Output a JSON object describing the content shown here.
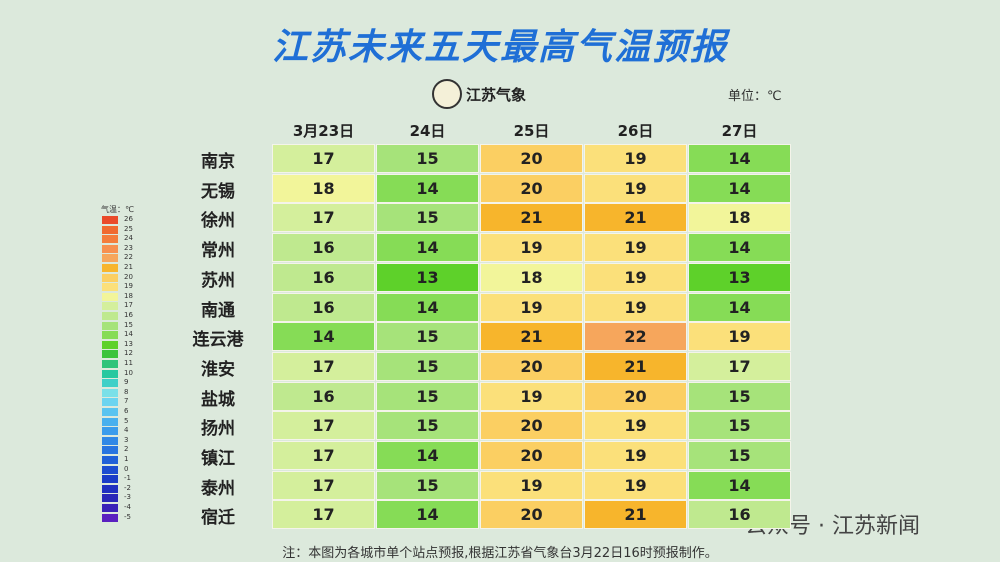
{
  "header": {
    "title": "江苏未来五天最高气温预报",
    "logo": "江苏气象",
    "unit": "单位：℃"
  },
  "table": {
    "columns": [
      "3月23日",
      "24日",
      "25日",
      "26日",
      "27日"
    ],
    "rows": [
      {
        "city": "南京",
        "values": [
          17,
          15,
          20,
          19,
          14
        ]
      },
      {
        "city": "无锡",
        "values": [
          18,
          14,
          20,
          19,
          14
        ]
      },
      {
        "city": "徐州",
        "values": [
          17,
          15,
          21,
          21,
          18
        ]
      },
      {
        "city": "常州",
        "values": [
          16,
          14,
          19,
          19,
          14
        ]
      },
      {
        "city": "苏州",
        "values": [
          16,
          13,
          18,
          19,
          13
        ]
      },
      {
        "city": "南通",
        "values": [
          16,
          14,
          19,
          19,
          14
        ]
      },
      {
        "city": "连云港",
        "values": [
          14,
          15,
          21,
          22,
          19
        ]
      },
      {
        "city": "淮安",
        "values": [
          17,
          15,
          20,
          21,
          17
        ]
      },
      {
        "city": "盐城",
        "values": [
          16,
          15,
          19,
          20,
          15
        ]
      },
      {
        "city": "扬州",
        "values": [
          17,
          15,
          20,
          19,
          15
        ]
      },
      {
        "city": "镇江",
        "values": [
          17,
          14,
          20,
          19,
          15
        ]
      },
      {
        "city": "泰州",
        "values": [
          17,
          15,
          19,
          19,
          14
        ]
      },
      {
        "city": "宿迁",
        "values": [
          17,
          14,
          20,
          21,
          16
        ]
      }
    ]
  },
  "legend": {
    "title": "气温：℃",
    "items": [
      {
        "value": 26,
        "color": "#ea4a2a"
      },
      {
        "value": 25,
        "color": "#f06a30"
      },
      {
        "value": 24,
        "color": "#f47d3c"
      },
      {
        "value": 23,
        "color": "#f79050"
      },
      {
        "value": 22,
        "color": "#f6a65c"
      },
      {
        "value": 21,
        "color": "#f7b52c"
      },
      {
        "value": 20,
        "color": "#fbcf62"
      },
      {
        "value": 19,
        "color": "#fbe07a"
      },
      {
        "value": 18,
        "color": "#f2f59a"
      },
      {
        "value": 17,
        "color": "#d4ef9c"
      },
      {
        "value": 16,
        "color": "#bfe98f"
      },
      {
        "value": 15,
        "color": "#a6e37a"
      },
      {
        "value": 14,
        "color": "#86dc56"
      },
      {
        "value": 13,
        "color": "#5ed12a"
      },
      {
        "value": 12,
        "color": "#3cc43c"
      },
      {
        "value": 11,
        "color": "#2ec47a"
      },
      {
        "value": 10,
        "color": "#28c8a0"
      },
      {
        "value": 9,
        "color": "#3fd0c8"
      },
      {
        "value": 8,
        "color": "#7ae0e8"
      },
      {
        "value": 7,
        "color": "#6cd4f0"
      },
      {
        "value": 6,
        "color": "#5ac4f0"
      },
      {
        "value": 5,
        "color": "#48b0ee"
      },
      {
        "value": 4,
        "color": "#3a9cec"
      },
      {
        "value": 3,
        "color": "#3088e6"
      },
      {
        "value": 2,
        "color": "#2874e0"
      },
      {
        "value": 1,
        "color": "#2060d8"
      },
      {
        "value": 0,
        "color": "#1c4cd0"
      },
      {
        "value": -1,
        "color": "#1a3cc8"
      },
      {
        "value": -2,
        "color": "#2030c0"
      },
      {
        "value": -3,
        "color": "#2a28b8"
      },
      {
        "value": -4,
        "color": "#3a22b8"
      },
      {
        "value": -5,
        "color": "#5a20c0"
      }
    ]
  },
  "footer": {
    "note": "注：本图为各城市单个站点预报,根据江苏省气象台3月22日16时预报制作。",
    "watermark": "公众号 · 江苏新闻"
  }
}
